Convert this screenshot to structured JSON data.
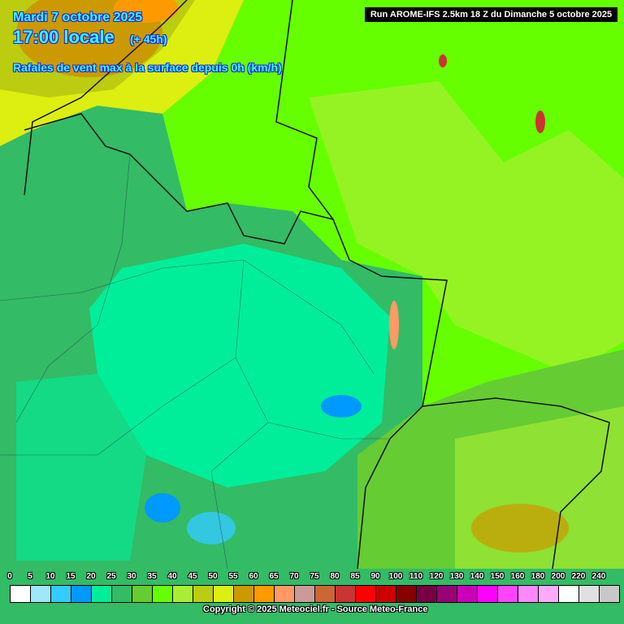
{
  "header": {
    "date": "Mardi 7 octobre 2025",
    "time": "17:00 locale",
    "lead": "(+ 45h)",
    "parameter": "Rafales de vent max à la surface depuis 0h (km/h)",
    "run": "Run AROME-IFS 2.5km 18 Z du Dimanche 5 octobre 2025"
  },
  "legend": {
    "labels": [
      "0",
      "5",
      "10",
      "15",
      "20",
      "25",
      "30",
      "35",
      "40",
      "45",
      "50",
      "55",
      "60",
      "65",
      "70",
      "75",
      "80",
      "85",
      "90",
      "100",
      "110",
      "120",
      "130",
      "140",
      "150",
      "160",
      "180",
      "200",
      "220",
      "240"
    ],
    "colors": [
      "#ffffff",
      "#a0e6ff",
      "#33ccff",
      "#0099ff",
      "#00ee99",
      "#33bb66",
      "#66cc33",
      "#66ff00",
      "#aaee33",
      "#bbcc11",
      "#ddee11",
      "#cc9900",
      "#ff9900",
      "#ff9966",
      "#cc9999",
      "#cc6633",
      "#cc3333",
      "#ff0000",
      "#cc0000",
      "#880000",
      "#770044",
      "#990077",
      "#cc00bb",
      "#ff00ff",
      "#ff44ff",
      "#ff88ff",
      "#ffaaff",
      "#ffffff",
      "#e0e0e0",
      "#c8c8c8"
    ]
  },
  "copyright": "Copyright © 2025 Meteociel.fr - Source Meteo-France"
}
